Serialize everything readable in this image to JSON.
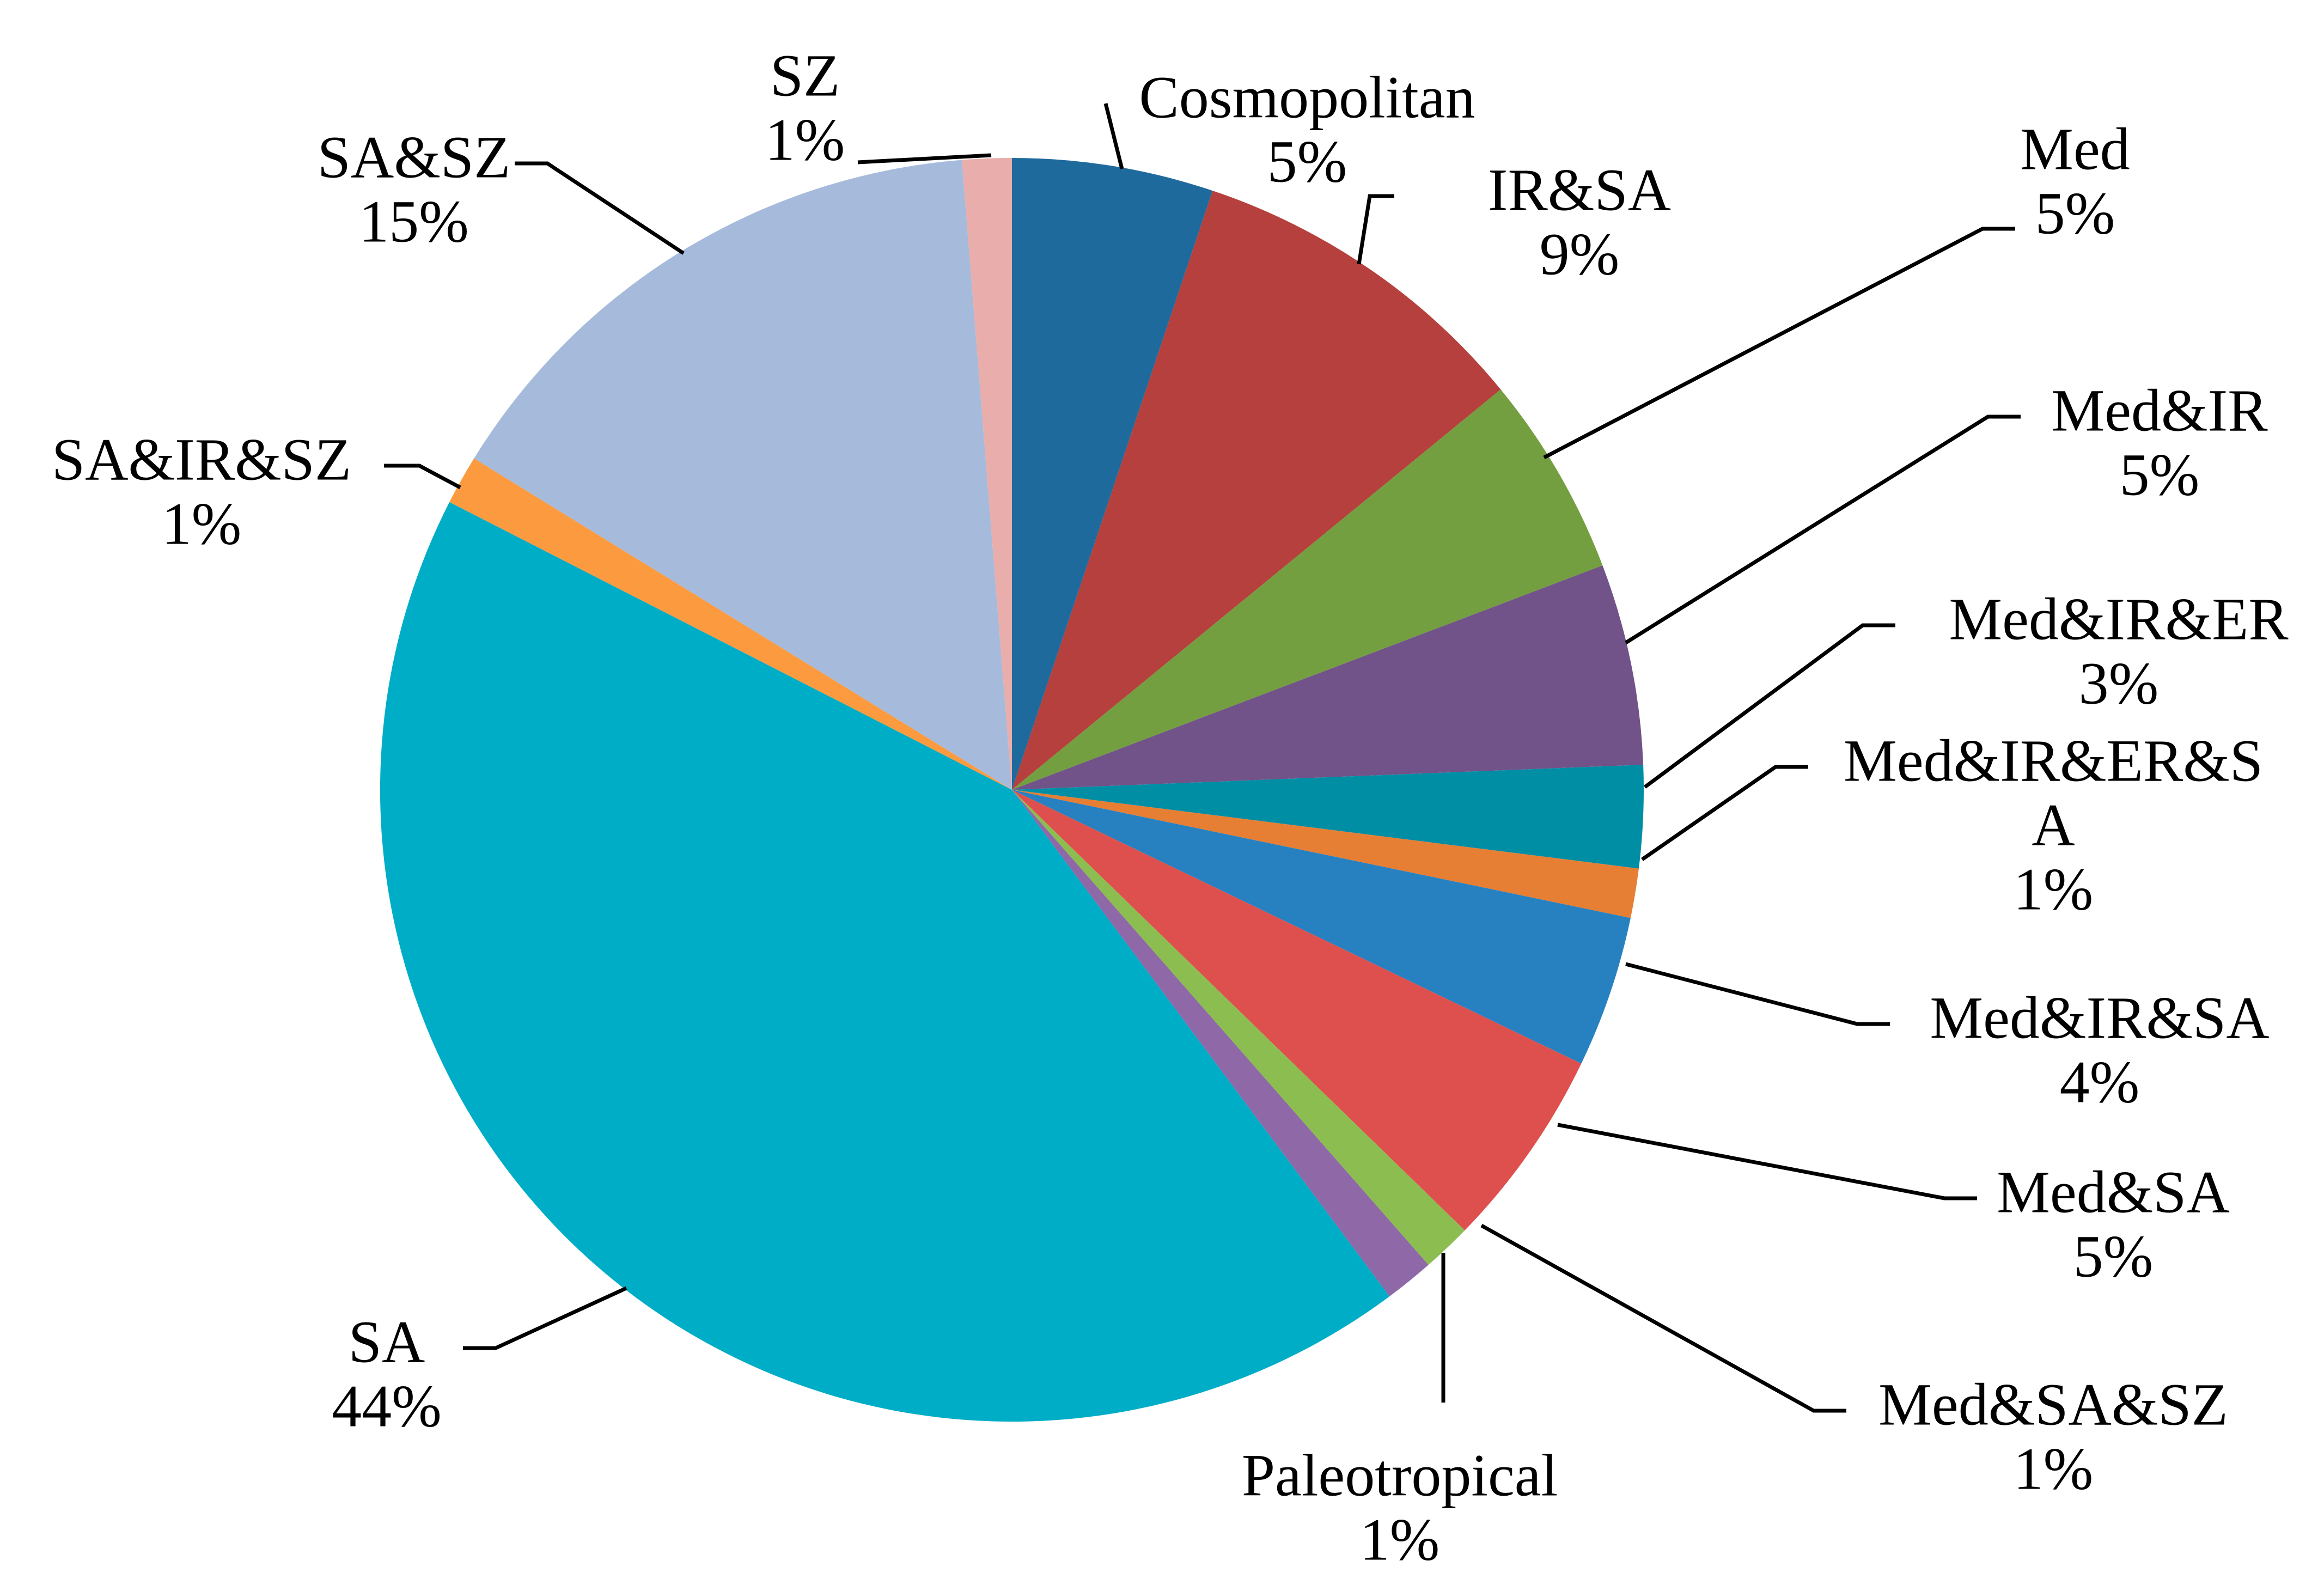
{
  "chart_data": {
    "type": "pie",
    "title": "",
    "slices": [
      {
        "label": "Cosmopolitan",
        "value_label": "5%",
        "value": 5.3,
        "color": "#1f6a9d"
      },
      {
        "label": "IR&SA",
        "value_label": "9%",
        "value": 9.2,
        "color": "#b5403d"
      },
      {
        "label": "Med",
        "value_label": "5%",
        "value": 5.3,
        "color": "#739f41"
      },
      {
        "label": "Med&IR",
        "value_label": "5%",
        "value": 5.3,
        "color": "#715289"
      },
      {
        "label": "Med&IR&ER",
        "value_label": "3%",
        "value": 2.7,
        "color": "#008ea5"
      },
      {
        "label": "Med&IR&ER&SA",
        "label_lines": [
          "Med&IR&ER&S",
          "A"
        ],
        "value_label": "1%",
        "value": 1.3,
        "color": "#e67e33"
      },
      {
        "label": "Med&IR&SA",
        "value_label": "4%",
        "value": 4.0,
        "color": "#2781c1"
      },
      {
        "label": "Med&SA",
        "value_label": "5%",
        "value": 5.3,
        "color": "#de504d"
      },
      {
        "label": "Med&SA&SZ",
        "value_label": "1%",
        "value": 1.3,
        "color": "#8cbd51"
      },
      {
        "label": "Paleotropical",
        "value_label": "1%",
        "value": 1.3,
        "color": "#8e68a7"
      },
      {
        "label": "SA",
        "value_label": "44%",
        "value": 44.0,
        "color": "#00adc7"
      },
      {
        "label": "SA&IR&SZ",
        "value_label": "1%",
        "value": 1.3,
        "color": "#fb9a3f"
      },
      {
        "label": "SA&SZ",
        "value_label": "15%",
        "value": 15.4,
        "color": "#a6bbdb"
      },
      {
        "label": "SZ",
        "value_label": "1%",
        "value": 1.3,
        "color": "#e9adab"
      }
    ]
  }
}
